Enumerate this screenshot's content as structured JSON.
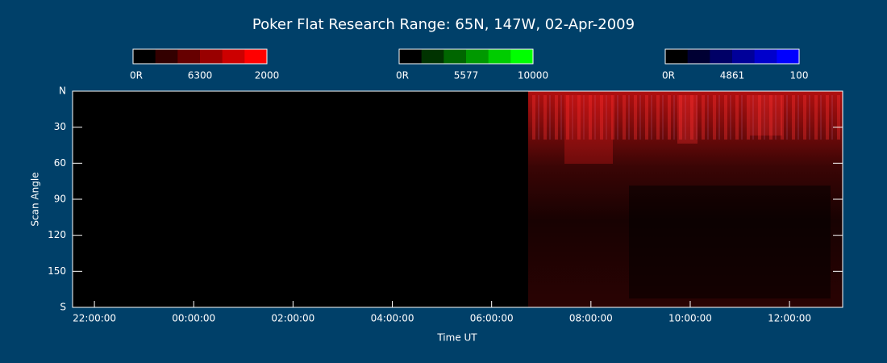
{
  "chart_data": {
    "type": "keogram",
    "title": "Poker Flat Research Range: 65N, 147W, 02-Apr-2009",
    "x_label": "Time UT",
    "y_label": "Scan Angle",
    "xlim": [
      -2.44,
      13.07
    ],
    "xticks": [
      {
        "value": -2,
        "label": "22:00:00"
      },
      {
        "value": 0,
        "label": "00:00:00"
      },
      {
        "value": 2,
        "label": "02:00:00"
      },
      {
        "value": 4,
        "label": "04:00:00"
      },
      {
        "value": 6,
        "label": "06:00:00"
      },
      {
        "value": 8,
        "label": "08:00:00"
      },
      {
        "value": 10,
        "label": "10:00:00"
      },
      {
        "value": 12,
        "label": "12:00:00"
      }
    ],
    "ylim": [
      180,
      0
    ],
    "yticks": [
      {
        "value": 0,
        "label": "N"
      },
      30,
      60,
      90,
      120,
      150,
      {
        "value": 180,
        "label": "S"
      }
    ],
    "colorbars": [
      {
        "name": "6300",
        "min": {
          "value": 0,
          "label": "0R"
        },
        "max": 2000,
        "colors": [
          "#000000",
          "#330000",
          "#660000",
          "#990000",
          "#cc0000",
          "#ff0000"
        ]
      },
      {
        "name": "5577",
        "min": {
          "value": 0,
          "label": "0R"
        },
        "max": 10000,
        "colors": [
          "#000000",
          "#003300",
          "#006600",
          "#009900",
          "#00cc00",
          "#00ff00"
        ]
      },
      {
        "name": "4861",
        "min": {
          "value": 0,
          "label": "0R"
        },
        "max": 100,
        "colors": [
          "#000000",
          "#000033",
          "#000066",
          "#000099",
          "#0000cc",
          "#0000ff"
        ]
      }
    ]
  }
}
